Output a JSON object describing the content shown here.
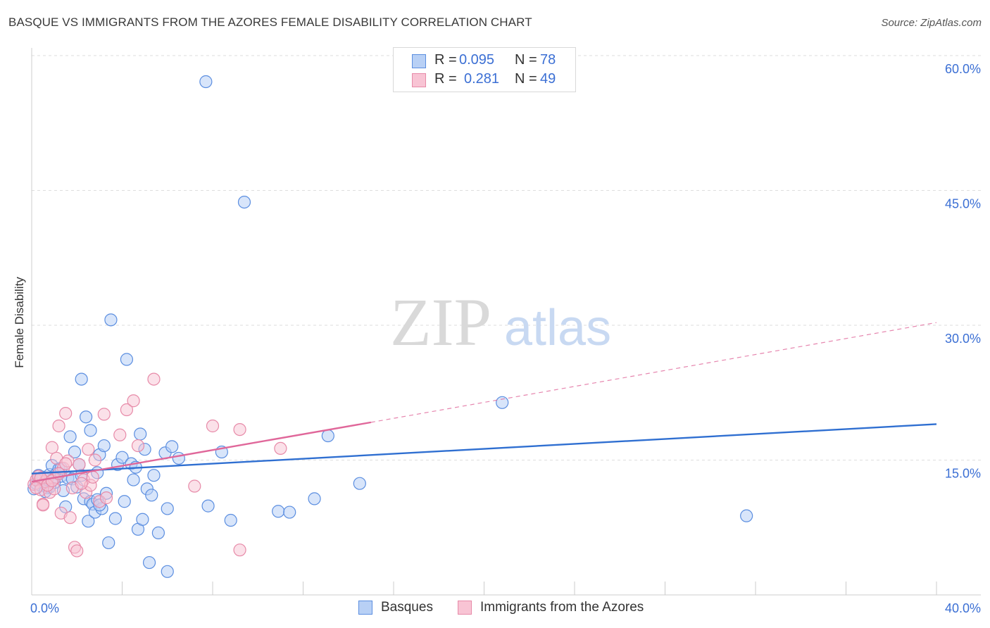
{
  "title": "BASQUE VS IMMIGRANTS FROM THE AZORES FEMALE DISABILITY CORRELATION CHART",
  "source": "Source: ZipAtlas.com",
  "watermark": {
    "zip": "ZIP",
    "atlas": "atlas"
  },
  "colors": {
    "blue_fill": "#b8d0f5",
    "blue_stroke": "#5b8ee0",
    "blue_line": "#2f6fd1",
    "pink_fill": "#f8c4d4",
    "pink_stroke": "#e78aa8",
    "pink_line": "#e0679a",
    "axis_text": "#3b6fd4",
    "grid": "#dedede"
  },
  "legend": {
    "rows": [
      {
        "r_label": "R =",
        "r_value": "0.095",
        "n_label": "N =",
        "n_value": "78"
      },
      {
        "r_label": "R =",
        "r_value": "0.281",
        "n_label": "N =",
        "n_value": "49"
      }
    ]
  },
  "chart_data": {
    "type": "scatter",
    "xlabel": "",
    "ylabel": "Female Disability",
    "xlim": [
      0,
      40
    ],
    "ylim": [
      0,
      60
    ],
    "x_tick_labels": [
      "0.0%",
      "40.0%"
    ],
    "y_ticks": [
      15,
      30,
      45,
      60
    ],
    "y_tick_labels": [
      "15.0%",
      "30.0%",
      "45.0%",
      "60.0%"
    ],
    "grid": "horizontal dashed",
    "series": [
      {
        "name": "Basques",
        "trend": {
          "x0": 0,
          "y0": 13.5,
          "x1": 40,
          "y1": 19.0,
          "dashed_extension": false
        },
        "points": [
          [
            0.1,
            11.8
          ],
          [
            0.2,
            12.4
          ],
          [
            0.3,
            12.9
          ],
          [
            0.4,
            12.2
          ],
          [
            0.5,
            13.1
          ],
          [
            0.6,
            12.6
          ],
          [
            0.7,
            11.9
          ],
          [
            0.8,
            13.4
          ],
          [
            0.9,
            14.4
          ],
          [
            1.0,
            13.0
          ],
          [
            1.1,
            13.5
          ],
          [
            1.2,
            14.0
          ],
          [
            1.3,
            13.2
          ],
          [
            1.4,
            11.6
          ],
          [
            1.5,
            9.8
          ],
          [
            1.6,
            13.0
          ],
          [
            1.7,
            17.6
          ],
          [
            1.8,
            12.9
          ],
          [
            1.9,
            15.9
          ],
          [
            2.0,
            12.0
          ],
          [
            2.1,
            14.5
          ],
          [
            2.2,
            13.3
          ],
          [
            2.3,
            10.7
          ],
          [
            2.4,
            19.8
          ],
          [
            2.5,
            8.2
          ],
          [
            2.6,
            10.4
          ],
          [
            2.6,
            18.3
          ],
          [
            2.7,
            10.1
          ],
          [
            2.8,
            9.2
          ],
          [
            2.9,
            10.6
          ],
          [
            3.0,
            15.6
          ],
          [
            3.1,
            9.6
          ],
          [
            3.2,
            16.6
          ],
          [
            3.3,
            11.3
          ],
          [
            3.4,
            5.8
          ],
          [
            3.5,
            30.6
          ],
          [
            3.7,
            8.5
          ],
          [
            3.8,
            14.5
          ],
          [
            4.0,
            15.3
          ],
          [
            4.1,
            10.4
          ],
          [
            4.2,
            26.2
          ],
          [
            4.4,
            14.6
          ],
          [
            4.6,
            14.2
          ],
          [
            4.7,
            7.3
          ],
          [
            4.8,
            17.9
          ],
          [
            4.9,
            8.4
          ],
          [
            5.0,
            16.2
          ],
          [
            5.1,
            11.8
          ],
          [
            5.2,
            3.6
          ],
          [
            5.3,
            11.1
          ],
          [
            5.4,
            13.3
          ],
          [
            5.6,
            6.9
          ],
          [
            5.9,
            15.8
          ],
          [
            6.0,
            2.6
          ],
          [
            6.0,
            9.6
          ],
          [
            6.2,
            16.5
          ],
          [
            6.5,
            15.2
          ],
          [
            7.7,
            57.1
          ],
          [
            7.8,
            9.9
          ],
          [
            8.4,
            15.9
          ],
          [
            8.8,
            8.3
          ],
          [
            9.4,
            43.7
          ],
          [
            10.9,
            9.3
          ],
          [
            11.4,
            9.2
          ],
          [
            12.5,
            10.7
          ],
          [
            13.1,
            17.7
          ],
          [
            14.5,
            12.4
          ],
          [
            20.8,
            21.4
          ],
          [
            31.6,
            8.8
          ],
          [
            2.2,
            24.0
          ],
          [
            1.0,
            12.5
          ],
          [
            0.3,
            13.3
          ],
          [
            0.8,
            12.0
          ],
          [
            1.3,
            14.1
          ],
          [
            3.0,
            10.0
          ],
          [
            4.5,
            12.8
          ],
          [
            2.9,
            13.6
          ],
          [
            0.6,
            11.5
          ]
        ]
      },
      {
        "name": "Immigrants from the Azores",
        "trend": {
          "x0": 0,
          "y0": 12.6,
          "x1": 15.0,
          "y1": 19.2,
          "dashed_to_x": 40,
          "dashed_to_y": 30.3
        },
        "points": [
          [
            0.1,
            12.3
          ],
          [
            0.2,
            12.8
          ],
          [
            0.3,
            13.2
          ],
          [
            0.4,
            11.7
          ],
          [
            0.5,
            10.1
          ],
          [
            0.6,
            12.6
          ],
          [
            0.7,
            13.0
          ],
          [
            0.8,
            11.4
          ],
          [
            0.9,
            16.4
          ],
          [
            1.0,
            12.9
          ],
          [
            1.1,
            15.2
          ],
          [
            1.2,
            18.8
          ],
          [
            1.3,
            9.1
          ],
          [
            1.4,
            14.1
          ],
          [
            1.5,
            20.2
          ],
          [
            1.6,
            14.9
          ],
          [
            1.7,
            8.6
          ],
          [
            1.8,
            11.9
          ],
          [
            1.9,
            5.3
          ],
          [
            2.0,
            4.9
          ],
          [
            2.1,
            14.5
          ],
          [
            2.3,
            12.8
          ],
          [
            2.4,
            11.4
          ],
          [
            2.5,
            16.2
          ],
          [
            2.6,
            12.2
          ],
          [
            2.7,
            13.1
          ],
          [
            2.8,
            15.0
          ],
          [
            3.0,
            10.4
          ],
          [
            3.2,
            20.1
          ],
          [
            3.9,
            17.8
          ],
          [
            4.2,
            20.6
          ],
          [
            4.5,
            21.6
          ],
          [
            4.7,
            16.6
          ],
          [
            5.4,
            24.0
          ],
          [
            7.2,
            12.1
          ],
          [
            8.0,
            18.8
          ],
          [
            9.2,
            18.4
          ],
          [
            9.2,
            5.0
          ],
          [
            11.0,
            16.3
          ],
          [
            0.5,
            10.0
          ],
          [
            1.0,
            11.8
          ],
          [
            0.4,
            13.0
          ],
          [
            0.7,
            12.2
          ],
          [
            1.5,
            14.6
          ],
          [
            2.2,
            12.4
          ],
          [
            0.2,
            11.9
          ],
          [
            0.9,
            12.7
          ],
          [
            1.2,
            13.5
          ],
          [
            3.3,
            10.8
          ]
        ]
      }
    ]
  }
}
